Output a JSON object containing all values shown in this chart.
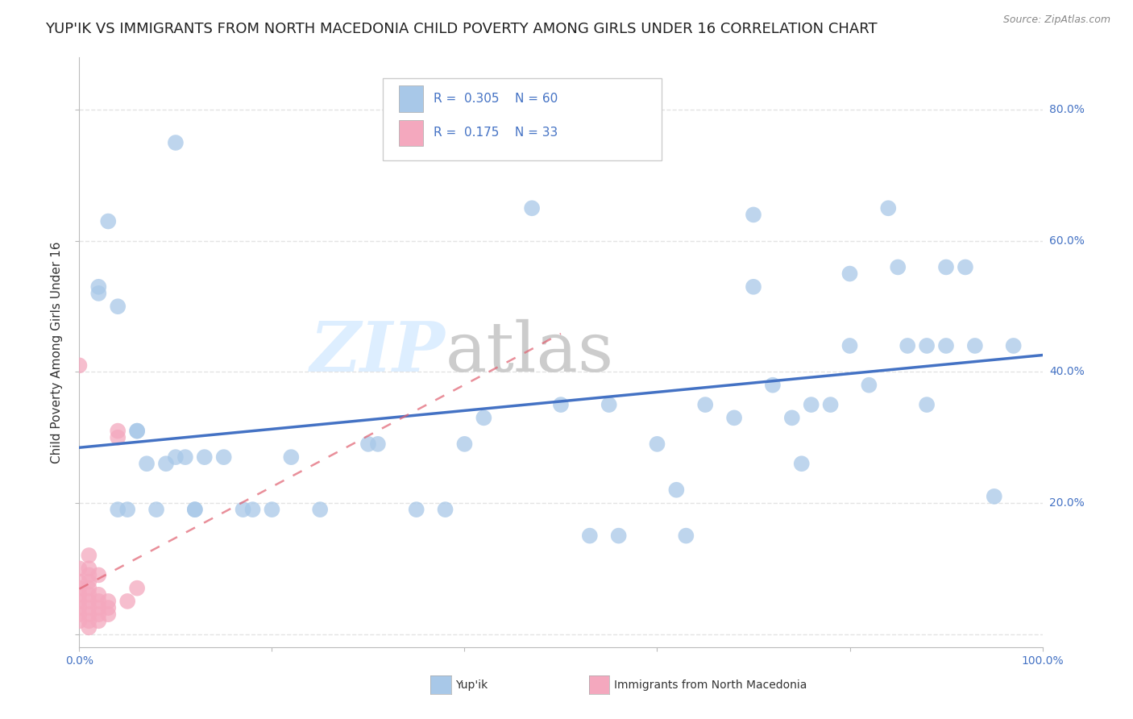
{
  "title": "YUP'IK VS IMMIGRANTS FROM NORTH MACEDONIA CHILD POVERTY AMONG GIRLS UNDER 16 CORRELATION CHART",
  "source": "Source: ZipAtlas.com",
  "ylabel": "Child Poverty Among Girls Under 16",
  "xlim": [
    0,
    1.0
  ],
  "ylim": [
    -0.02,
    0.88
  ],
  "yticks": [
    0.0,
    0.2,
    0.4,
    0.6,
    0.8
  ],
  "ytick_labels": [
    "",
    "20.0%",
    "40.0%",
    "60.0%",
    "80.0%"
  ],
  "blue_color": "#A8C8E8",
  "pink_color": "#F4A8BE",
  "blue_line_color": "#4472C4",
  "pink_line_color": "#E06070",
  "R_blue": 0.305,
  "N_blue": 60,
  "R_pink": 0.175,
  "N_pink": 33,
  "blue_scatter": [
    [
      0.02,
      0.53
    ],
    [
      0.03,
      0.63
    ],
    [
      0.04,
      0.5
    ],
    [
      0.04,
      0.19
    ],
    [
      0.05,
      0.19
    ],
    [
      0.06,
      0.31
    ],
    [
      0.06,
      0.31
    ],
    [
      0.07,
      0.26
    ],
    [
      0.08,
      0.19
    ],
    [
      0.09,
      0.26
    ],
    [
      0.1,
      0.27
    ],
    [
      0.1,
      0.75
    ],
    [
      0.11,
      0.27
    ],
    [
      0.12,
      0.19
    ],
    [
      0.12,
      0.19
    ],
    [
      0.13,
      0.27
    ],
    [
      0.15,
      0.27
    ],
    [
      0.17,
      0.19
    ],
    [
      0.18,
      0.19
    ],
    [
      0.2,
      0.19
    ],
    [
      0.22,
      0.27
    ],
    [
      0.25,
      0.19
    ],
    [
      0.3,
      0.29
    ],
    [
      0.31,
      0.29
    ],
    [
      0.35,
      0.19
    ],
    [
      0.38,
      0.19
    ],
    [
      0.4,
      0.29
    ],
    [
      0.42,
      0.33
    ],
    [
      0.47,
      0.65
    ],
    [
      0.5,
      0.35
    ],
    [
      0.53,
      0.15
    ],
    [
      0.55,
      0.35
    ],
    [
      0.56,
      0.15
    ],
    [
      0.6,
      0.29
    ],
    [
      0.62,
      0.22
    ],
    [
      0.63,
      0.15
    ],
    [
      0.65,
      0.35
    ],
    [
      0.68,
      0.33
    ],
    [
      0.7,
      0.53
    ],
    [
      0.7,
      0.64
    ],
    [
      0.72,
      0.38
    ],
    [
      0.74,
      0.33
    ],
    [
      0.75,
      0.26
    ],
    [
      0.76,
      0.35
    ],
    [
      0.78,
      0.35
    ],
    [
      0.8,
      0.55
    ],
    [
      0.8,
      0.44
    ],
    [
      0.82,
      0.38
    ],
    [
      0.84,
      0.65
    ],
    [
      0.85,
      0.56
    ],
    [
      0.86,
      0.44
    ],
    [
      0.88,
      0.44
    ],
    [
      0.88,
      0.35
    ],
    [
      0.9,
      0.56
    ],
    [
      0.9,
      0.44
    ],
    [
      0.92,
      0.56
    ],
    [
      0.93,
      0.44
    ],
    [
      0.95,
      0.21
    ],
    [
      0.97,
      0.44
    ],
    [
      0.02,
      0.52
    ]
  ],
  "pink_scatter": [
    [
      0.0,
      0.41
    ],
    [
      0.0,
      0.1
    ],
    [
      0.0,
      0.08
    ],
    [
      0.0,
      0.07
    ],
    [
      0.0,
      0.06
    ],
    [
      0.0,
      0.05
    ],
    [
      0.0,
      0.04
    ],
    [
      0.0,
      0.03
    ],
    [
      0.0,
      0.02
    ],
    [
      0.01,
      0.12
    ],
    [
      0.01,
      0.1
    ],
    [
      0.01,
      0.09
    ],
    [
      0.01,
      0.08
    ],
    [
      0.01,
      0.07
    ],
    [
      0.01,
      0.06
    ],
    [
      0.01,
      0.05
    ],
    [
      0.01,
      0.04
    ],
    [
      0.01,
      0.03
    ],
    [
      0.01,
      0.02
    ],
    [
      0.01,
      0.01
    ],
    [
      0.02,
      0.09
    ],
    [
      0.02,
      0.06
    ],
    [
      0.02,
      0.05
    ],
    [
      0.02,
      0.04
    ],
    [
      0.02,
      0.03
    ],
    [
      0.02,
      0.02
    ],
    [
      0.03,
      0.05
    ],
    [
      0.03,
      0.04
    ],
    [
      0.03,
      0.03
    ],
    [
      0.04,
      0.31
    ],
    [
      0.04,
      0.3
    ],
    [
      0.05,
      0.05
    ],
    [
      0.06,
      0.07
    ]
  ],
  "watermark_zip": "ZIP",
  "watermark_atlas": "atlas",
  "bg_color": "#FFFFFF",
  "grid_color": "#DDDDDD",
  "title_fontsize": 13,
  "axis_label_fontsize": 11,
  "tick_fontsize": 10,
  "legend_R_color": "#4472C4",
  "legend_N_color": "#4472C4"
}
